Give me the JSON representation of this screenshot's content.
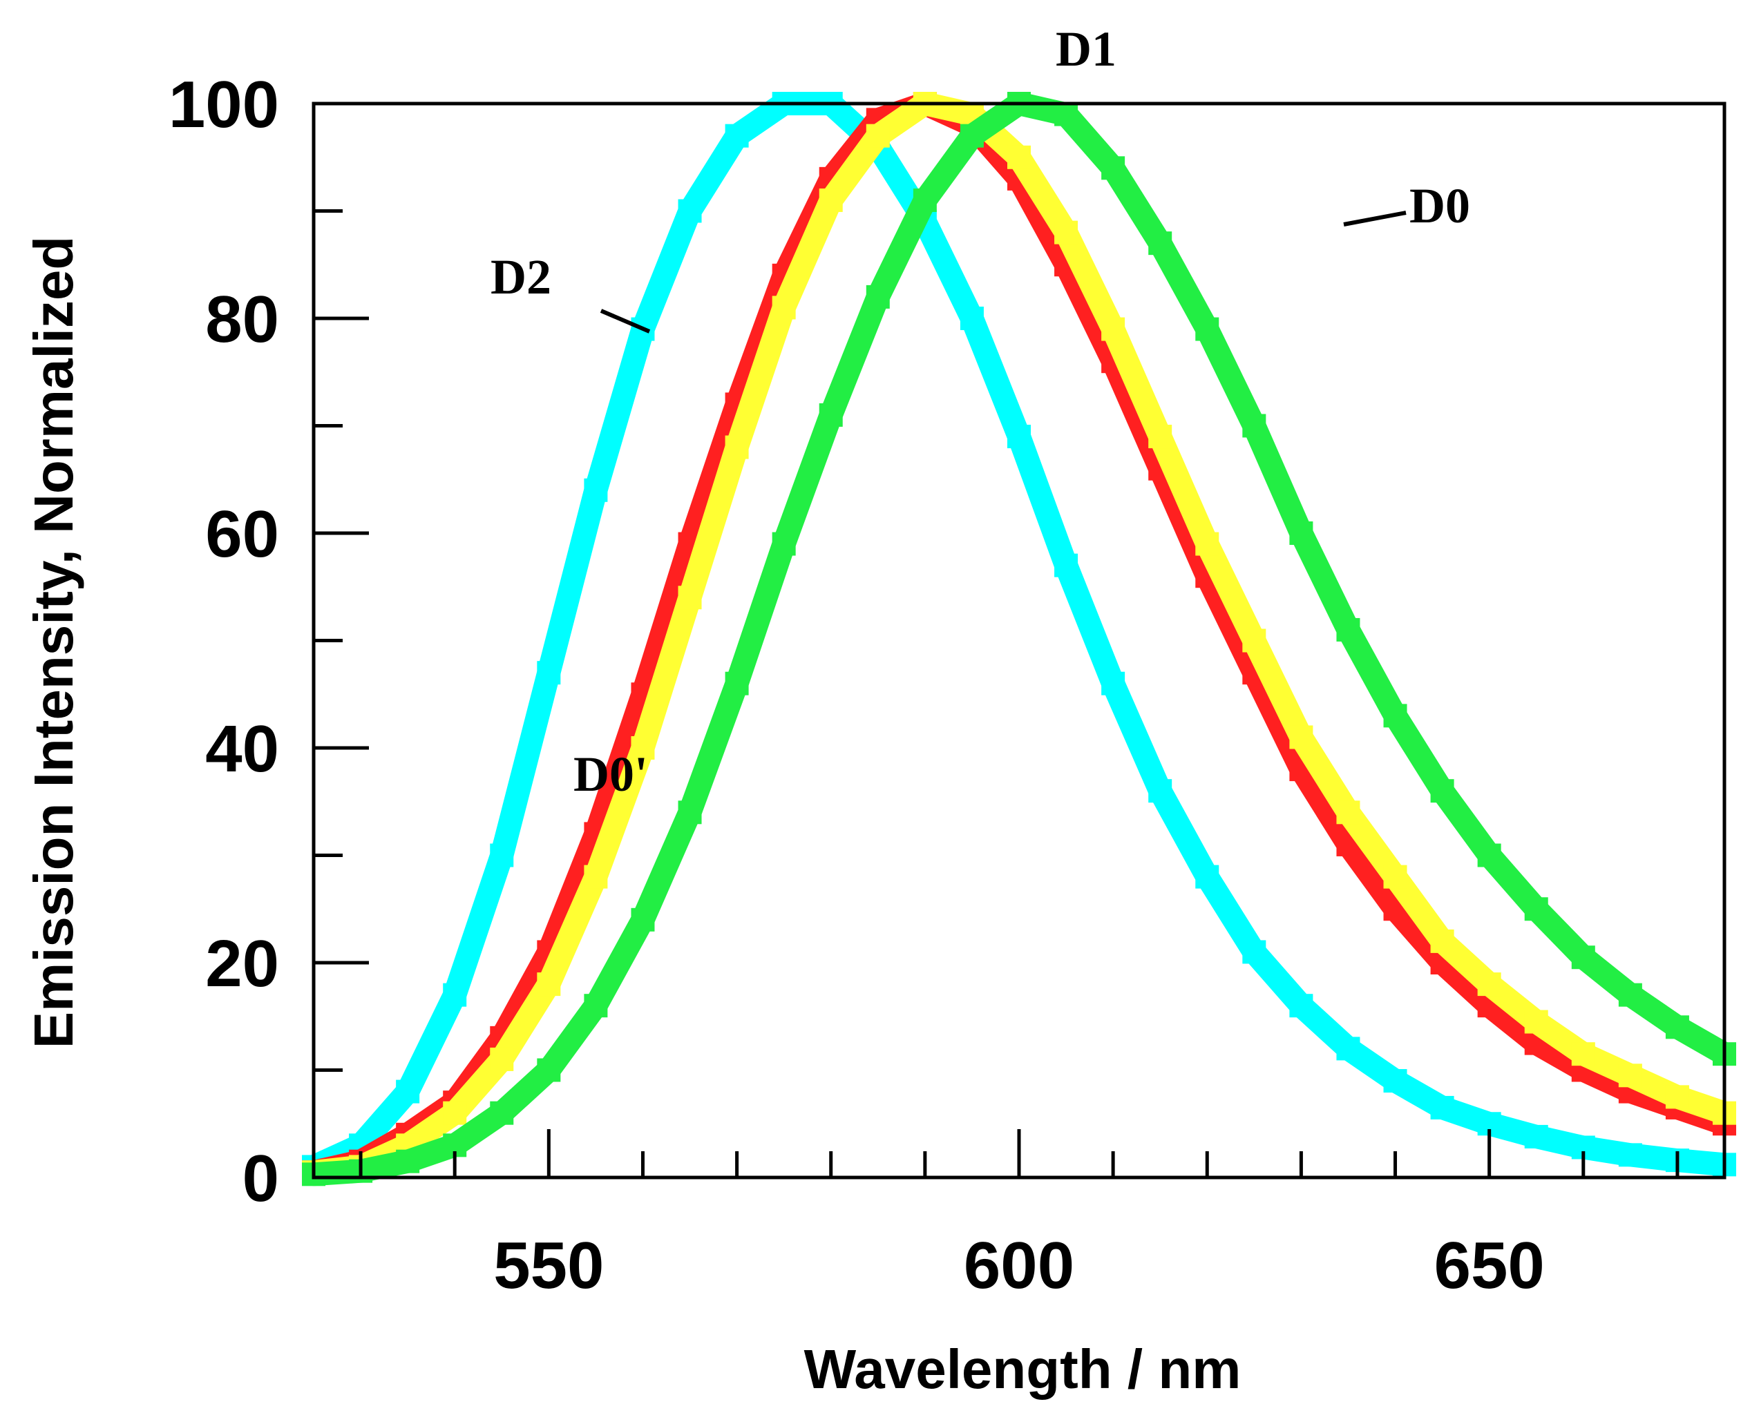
{
  "chart_data": {
    "type": "line",
    "title": "",
    "xlabel": "Wavelength / nm",
    "ylabel": "Emission Intensity, Normalized",
    "xlim": [
      525,
      675
    ],
    "ylim": [
      0,
      100
    ],
    "x_ticks": [
      550,
      600,
      650
    ],
    "x_tick_labels": [
      "550",
      "600",
      "650"
    ],
    "x_minor_step": 10,
    "y_ticks": [
      0,
      20,
      40,
      60,
      80,
      100
    ],
    "y_tick_labels": [
      "0",
      "20",
      "40",
      "60",
      "80",
      "100"
    ],
    "y_minor_step": 10,
    "grid": false,
    "x": [
      525,
      530,
      535,
      540,
      545,
      550,
      555,
      560,
      565,
      570,
      575,
      580,
      585,
      590,
      595,
      600,
      605,
      610,
      615,
      620,
      625,
      630,
      635,
      640,
      645,
      650,
      655,
      660,
      665,
      670,
      675
    ],
    "series": [
      {
        "name": "D2",
        "color": "#00ffff",
        "values": [
          1,
          3,
          8,
          17,
          30,
          47,
          64,
          79,
          90,
          97,
          100,
          100,
          96,
          89,
          80,
          69,
          57,
          46,
          36,
          28,
          21,
          16,
          12,
          9,
          6.5,
          5,
          3.8,
          2.8,
          2.1,
          1.6,
          1.2
        ]
      },
      {
        "name": "D0'",
        "color": "#ff2020",
        "values": [
          0.5,
          1.5,
          4,
          7,
          13,
          21,
          32,
          45,
          59,
          72,
          84,
          93,
          98.5,
          100,
          98,
          93,
          85,
          76,
          66,
          56,
          47,
          38,
          31,
          25,
          20,
          16,
          12.5,
          10,
          8,
          6.5,
          5
        ]
      },
      {
        "name": "D1",
        "color": "#ffff33",
        "values": [
          0.5,
          1,
          3,
          6,
          11,
          18,
          28,
          40,
          54,
          68,
          81,
          91,
          97,
          100,
          99,
          95,
          88,
          79,
          69,
          59,
          50,
          41,
          34,
          28,
          22,
          18,
          14.5,
          11.5,
          9.5,
          7.5,
          6
        ]
      },
      {
        "name": "D0",
        "color": "#22ee44",
        "values": [
          0.3,
          0.6,
          1.5,
          3,
          6,
          10,
          16,
          24,
          34,
          46,
          59,
          71,
          82,
          91,
          97,
          100,
          99,
          94,
          87,
          79,
          70,
          60,
          51,
          43,
          36,
          30,
          25,
          20.5,
          17,
          14,
          11.5
        ]
      }
    ],
    "annotations": [
      {
        "text": "D1",
        "series": "D1"
      },
      {
        "text": "D0",
        "series": "D0"
      },
      {
        "text": "D2",
        "series": "D2"
      },
      {
        "text": "D0'",
        "series": "D0'"
      }
    ]
  }
}
